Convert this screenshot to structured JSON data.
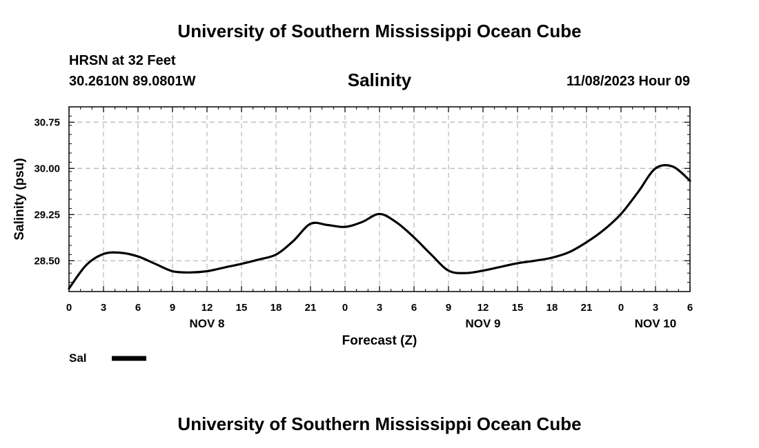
{
  "header": {
    "title": "University of Southern Mississippi Ocean Cube",
    "station": "HRSN at 32 Feet",
    "coordinates": "30.2610N  89.0801W",
    "parameter": "Salinity",
    "datetime": "11/08/2023 Hour 09"
  },
  "footer": {
    "title": "University of Southern Mississippi Ocean Cube"
  },
  "chart_data": {
    "type": "line",
    "title": "Salinity",
    "xlabel": "Forecast (Z)",
    "ylabel": "Salinity (psu)",
    "xlim": [
      0,
      54
    ],
    "ylim": [
      28.0,
      31.0
    ],
    "yticks": [
      28.5,
      29.25,
      30.0,
      30.75
    ],
    "ytick_labels": [
      "28.50",
      "29.25",
      "30.00",
      "30.75"
    ],
    "xticks": [
      0,
      3,
      6,
      9,
      12,
      15,
      18,
      21,
      24,
      27,
      30,
      33,
      36,
      39,
      42,
      45,
      48,
      51,
      54
    ],
    "xtick_labels": [
      "0",
      "3",
      "6",
      "9",
      "12",
      "15",
      "18",
      "21",
      "0",
      "3",
      "6",
      "9",
      "12",
      "15",
      "18",
      "21",
      "0",
      "3",
      "6"
    ],
    "date_labels": [
      {
        "x": 12,
        "label": "NOV 8"
      },
      {
        "x": 36,
        "label": "NOV 9"
      },
      {
        "x": 51,
        "label": "NOV 10"
      }
    ],
    "grid": true,
    "legend": {
      "placement": "below-left",
      "entries": [
        {
          "name": "Sal",
          "color": "#000000"
        }
      ]
    },
    "series": [
      {
        "name": "Sal",
        "color": "#000000",
        "x": [
          0,
          1.5,
          3,
          4.5,
          6,
          7.5,
          9,
          10.5,
          12,
          13.5,
          15,
          16.5,
          18,
          19.5,
          21,
          22.5,
          24,
          25.5,
          27,
          28.5,
          30,
          31.5,
          33,
          34.5,
          36,
          37.5,
          39,
          40.5,
          42,
          43.5,
          45,
          46.5,
          48,
          49.5,
          51,
          52.5,
          54
        ],
        "y": [
          28.05,
          28.43,
          28.61,
          28.63,
          28.57,
          28.45,
          28.33,
          28.31,
          28.33,
          28.39,
          28.45,
          28.52,
          28.6,
          28.82,
          29.1,
          29.08,
          29.05,
          29.13,
          29.26,
          29.12,
          28.88,
          28.6,
          28.34,
          28.3,
          28.34,
          28.4,
          28.46,
          28.5,
          28.55,
          28.64,
          28.8,
          29.0,
          29.26,
          29.62,
          30.0,
          30.03,
          29.8
        ]
      }
    ]
  }
}
